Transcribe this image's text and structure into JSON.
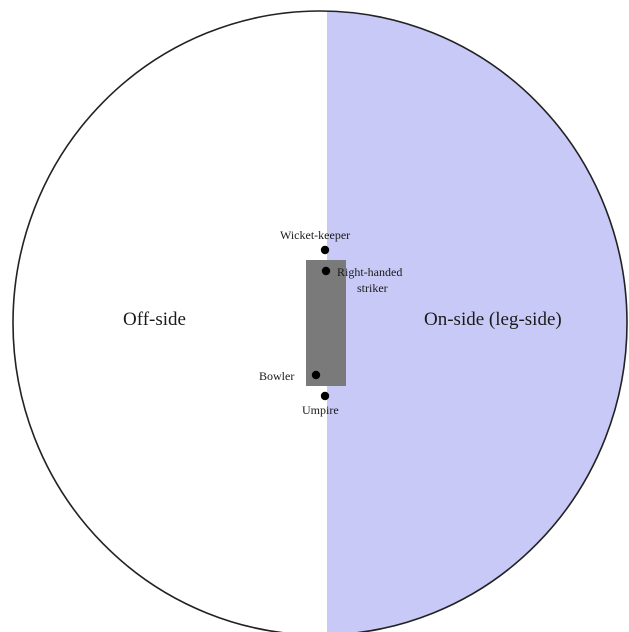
{
  "sides": {
    "off_side": "Off-side",
    "on_side": "On-side (leg-side)"
  },
  "positions": {
    "wicket_keeper": "Wicket-keeper",
    "striker_line1": "Right-handed",
    "striker_line2": "striker",
    "bowler": "Bowler",
    "umpire": "Umpire"
  },
  "colors": {
    "on_side_fill": "#c9c9f7",
    "pitch_fill": "#7a7a7a",
    "boundary_stroke": "#222222"
  }
}
